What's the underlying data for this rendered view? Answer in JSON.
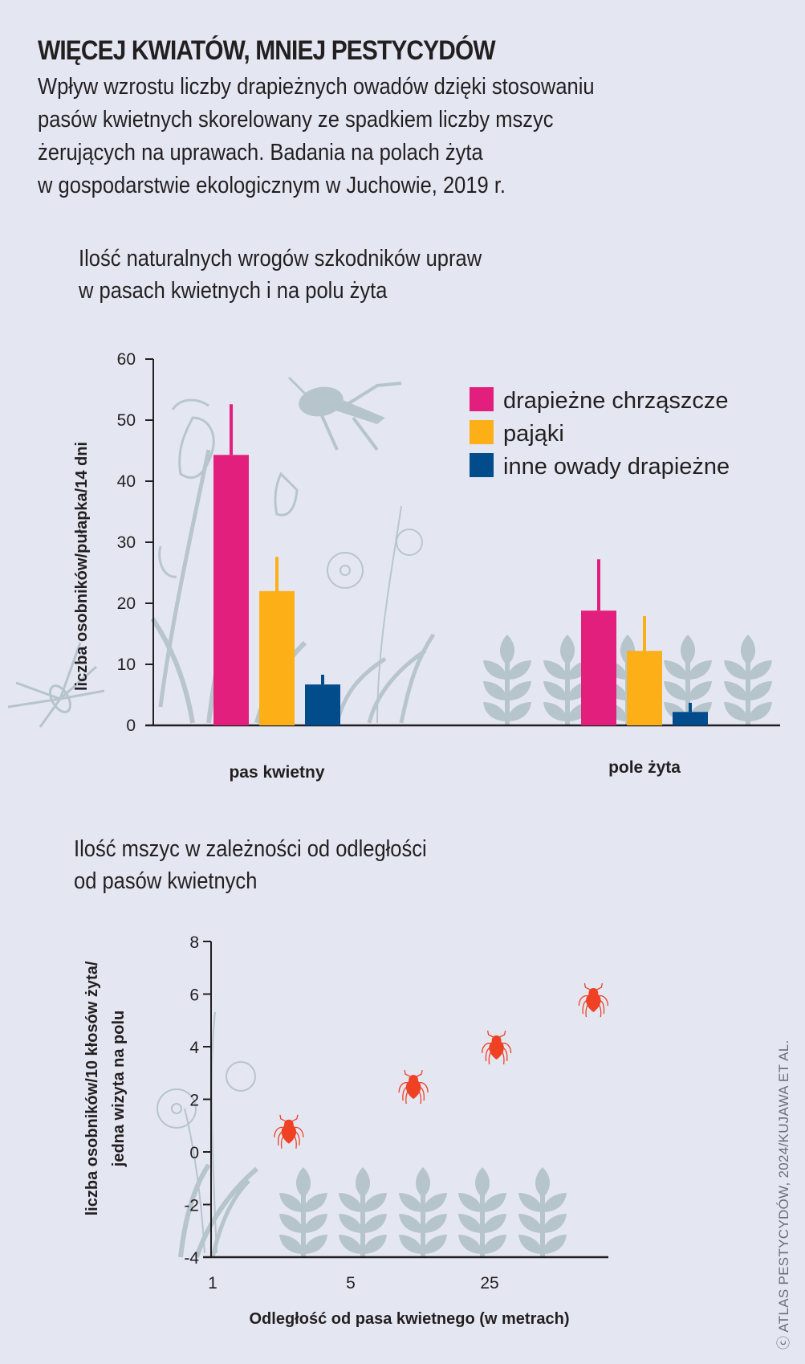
{
  "header": {
    "title": "WIĘCEJ KWIATÓW, MNIEJ PESTYCYDÓW",
    "subtitle_lines": [
      "Wpływ wzrostu liczby drapieżnych owadów dzięki stosowaniu",
      "pasów kwietnych skorelowany ze spadkiem liczby mszyc",
      "żerujących na uprawach. Badania na polach żyta",
      "w gospodarstwie ekologicznym w Juchowie, 2019 r."
    ]
  },
  "credit": "ⓒ ATLAS PESTYCYDÓW, 2024/KUJAWA ET AL.",
  "colors": {
    "background": "#e4e7f2",
    "beetles": "#e21f7d",
    "spiders": "#fcaf17",
    "other": "#034c8c",
    "aphid": "#ef4123",
    "illustration": "#b6c4cb"
  },
  "chart_data": [
    {
      "type": "bar",
      "title_lines": [
        "Ilość naturalnych wrogów szkodników upraw",
        "w pasach kwietnych i na polu żyta"
      ],
      "xlabel": "",
      "ylabel": "liczba osobników/pułapka/14 dni",
      "ylim": [
        0,
        60
      ],
      "yticks": [
        0,
        10,
        20,
        30,
        40,
        50,
        60
      ],
      "categories": [
        "pas kwietny",
        "pole żyta"
      ],
      "legend_position": "top-right",
      "grid": false,
      "series": [
        {
          "name": "drapieżne chrząszcze",
          "color": "#e21f7d",
          "values": [
            44.3,
            18.8
          ],
          "error_upper": [
            52.6,
            27.2
          ]
        },
        {
          "name": "pająki",
          "color": "#fcaf17",
          "values": [
            22.0,
            12.2
          ],
          "error_upper": [
            27.6,
            17.9
          ]
        },
        {
          "name": "inne owady drapieżne",
          "color": "#034c8c",
          "values": [
            6.7,
            2.2
          ],
          "error_upper": [
            8.3,
            3.7
          ]
        }
      ]
    },
    {
      "type": "scatter",
      "title_lines": [
        "Ilość mszyc w zależności od odległości",
        "od pasów kwietnych"
      ],
      "xlabel": "Odległość od pasa kwietnego (w metrach)",
      "ylabel_lines": [
        "liczba osobników/10 kłosów żyta/",
        "jedna wizyta na polu"
      ],
      "ylim": [
        -4,
        8
      ],
      "yticks": [
        8,
        6,
        4,
        2,
        0,
        -2,
        -4
      ],
      "xticks": [
        "1",
        "5",
        "25"
      ],
      "grid": false,
      "marker": "aphid",
      "points": [
        {
          "x_index": 0.55,
          "y": 0.8
        },
        {
          "x_index": 1.45,
          "y": 2.5
        },
        {
          "x_index": 2.05,
          "y": 4.0
        },
        {
          "x_index": 2.75,
          "y": 5.8
        }
      ]
    }
  ]
}
